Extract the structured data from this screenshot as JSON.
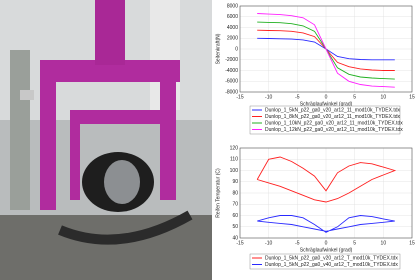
{
  "chart_data": [
    {
      "type": "line",
      "xlabel": "Schräglaufwinkel (grad)",
      "ylabel": "Seitenkraft(N)",
      "x": [
        -12,
        -10,
        -8,
        -6,
        -4,
        -2,
        0,
        2,
        4,
        6,
        8,
        10,
        12
      ],
      "xlim": [
        -15,
        15
      ],
      "xticks": [
        -15,
        -10,
        -5,
        0,
        5,
        10,
        15
      ],
      "ylim": [
        -8000,
        8000
      ],
      "yticks": [
        -8000,
        -6000,
        -4000,
        -2000,
        0,
        2000,
        4000,
        6000,
        8000
      ],
      "grid": true,
      "series": [
        {
          "name": "Dunlop_1_5kN_p22_ga0_v20_ar12_11_mod10k_TYDEX.tdx",
          "color": "#2a2aff",
          "values": [
            2000,
            1950,
            1900,
            1850,
            1700,
            1300,
            0,
            -1400,
            -1800,
            -1950,
            -2000,
            -2000,
            -2000
          ]
        },
        {
          "name": "Dunlop_1_8kN_p22_ga0_v20_ar12_11_mod10k_TYDEX.tdx",
          "color": "#ff2020",
          "values": [
            3500,
            3450,
            3400,
            3300,
            3000,
            2300,
            0,
            -2500,
            -3300,
            -3700,
            -3900,
            -4000,
            -4000
          ]
        },
        {
          "name": "Dunlop_1_10kN_p22_ga0_v20_ar12_11_mod10k_TYDEX.tdx",
          "color": "#20b020",
          "values": [
            5000,
            4950,
            4900,
            4700,
            4300,
            3300,
            0,
            -3500,
            -4700,
            -5200,
            -5400,
            -5500,
            -5600
          ]
        },
        {
          "name": "Dunlop_1_12kN_p22_ga0_v20_ar12_11_mod10k_TYDEX.tdx",
          "color": "#ff20ff",
          "values": [
            6600,
            6500,
            6400,
            6200,
            5800,
            4500,
            0,
            -4500,
            -6000,
            -6600,
            -6900,
            -7000,
            -7100
          ]
        }
      ]
    },
    {
      "type": "line",
      "xlabel": "Schräglaufwinkel (grad)",
      "ylabel": "Reifen Temperatur (C)",
      "xlim": [
        -15,
        15
      ],
      "xticks": [
        -15,
        -10,
        -5,
        0,
        5,
        10,
        15
      ],
      "ylim": [
        40,
        120
      ],
      "yticks": [
        40,
        50,
        60,
        70,
        80,
        90,
        100,
        110,
        120
      ],
      "grid": true,
      "series": [
        {
          "name": "Dunlop_1_5kN_p22_ga0_v20_ar12_T_mod10k_TYDEX.tdx",
          "color": "#ff2020",
          "x": [
            -12,
            -10,
            -8,
            -6,
            -4,
            -2,
            0,
            2,
            4,
            6,
            8,
            10,
            12,
            10,
            8,
            6,
            4,
            2,
            0,
            -2,
            -4,
            -6,
            -8,
            -10,
            -12
          ],
          "values": [
            92,
            110,
            112,
            108,
            102,
            95,
            82,
            98,
            104,
            107,
            106,
            103,
            100,
            96,
            92,
            86,
            80,
            75,
            72,
            74,
            78,
            82,
            86,
            89,
            92
          ]
        },
        {
          "name": "Dunlop_1_5kN_p22_ga0_v40_ar12_T_mod10k_TYDEX.tdx",
          "color": "#2a2aff",
          "x": [
            -12,
            -10,
            -8,
            -6,
            -4,
            -2,
            0,
            2,
            4,
            6,
            8,
            10,
            12,
            10,
            8,
            6,
            4,
            2,
            0,
            -2,
            -4,
            -6,
            -8,
            -10,
            -12
          ],
          "values": [
            55,
            58,
            60,
            60,
            58,
            52,
            45,
            50,
            58,
            60,
            59,
            57,
            55,
            54,
            53,
            52,
            50,
            48,
            46,
            48,
            50,
            52,
            53,
            54,
            55
          ]
        }
      ]
    }
  ]
}
